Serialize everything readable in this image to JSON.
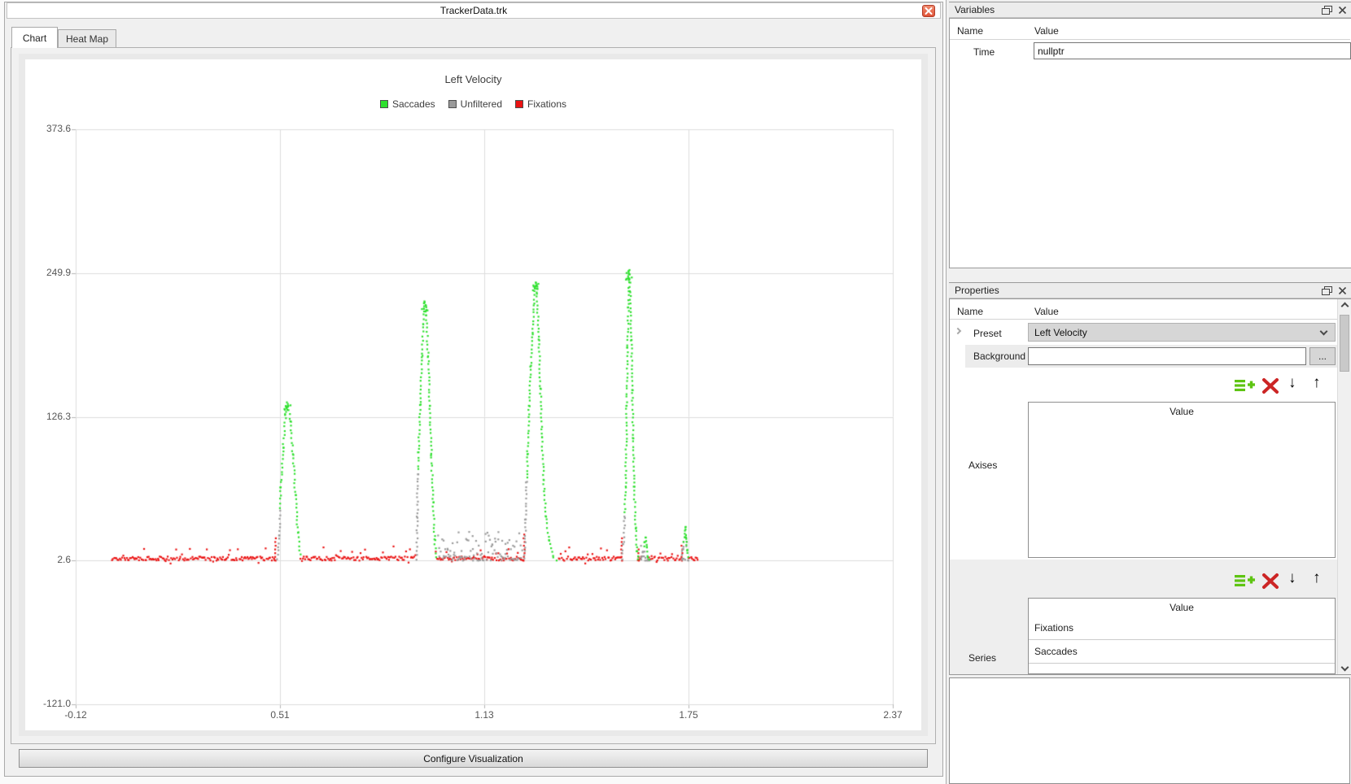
{
  "window": {
    "title": "TrackerData.trk"
  },
  "tabs": {
    "chart": "Chart",
    "heat_map": "Heat Map"
  },
  "main": {
    "configure_label": "Configure Visualization"
  },
  "chart_data": {
    "type": "scatter",
    "title": "Left Velocity",
    "xlabel": "",
    "ylabel": "",
    "xlim": [
      -0.12,
      2.37
    ],
    "ylim": [
      -121.0,
      373.6
    ],
    "x_ticks": [
      "-0.12",
      "0.51",
      "1.13",
      "1.75",
      "2.37"
    ],
    "y_ticks": [
      "373.6",
      "249.9",
      "126.3",
      "2.6",
      "-121.0"
    ],
    "grid": true,
    "legend_position": "top",
    "legend": [
      {
        "name": "Saccades",
        "color": "#2ee02e"
      },
      {
        "name": "Unfiltered",
        "color": "#9b9b9b"
      },
      {
        "name": "Fixations",
        "color": "#ea1212"
      }
    ],
    "series": [
      {
        "name": "Fixations",
        "type": "baseline",
        "color": "#ea1212",
        "baseline": 2.6,
        "segments": [
          [
            -0.01,
            0.489
          ],
          [
            0.565,
            0.918
          ],
          [
            0.978,
            1.245
          ],
          [
            1.352,
            1.542
          ],
          [
            1.594,
            1.606
          ],
          [
            1.628,
            1.727
          ],
          [
            1.748,
            1.778
          ]
        ],
        "stubs": [
          [
            0.4895,
            22
          ],
          [
            1.2465,
            26
          ],
          [
            1.5435,
            22
          ],
          [
            1.596,
            14
          ],
          [
            1.7275,
            16
          ]
        ]
      },
      {
        "name": "Unfiltered",
        "type": "cluster",
        "color": "#9b9b9b",
        "baseline": 2.6,
        "clusters": [
          [
            0.985,
            1.24,
            26
          ],
          [
            1.6,
            1.63,
            16
          ],
          [
            1.727,
            1.75,
            28
          ]
        ]
      },
      {
        "name": "Saccades",
        "type": "peaks",
        "color": "#2ee02e",
        "gray_color": "#9b9b9b",
        "peaks": [
          {
            "points": [
              [
                0.495,
                4
              ],
              [
                0.5,
                24
              ],
              [
                0.505,
                66
              ],
              [
                0.512,
                100
              ],
              [
                0.52,
                128
              ],
              [
                0.525,
                138
              ],
              [
                0.535,
                122
              ],
              [
                0.542,
                94
              ],
              [
                0.55,
                59
              ],
              [
                0.557,
                27
              ],
              [
                0.564,
                8
              ]
            ],
            "gray_rise_below": 46
          },
          {
            "points": [
              [
                0.919,
                4
              ],
              [
                0.921,
                40
              ],
              [
                0.923,
                77
              ],
              [
                0.925,
                95
              ],
              [
                0.93,
                136
              ],
              [
                0.935,
                178
              ],
              [
                0.94,
                206
              ],
              [
                0.944,
                225
              ],
              [
                0.949,
                213
              ],
              [
                0.954,
                178
              ],
              [
                0.959,
                136
              ],
              [
                0.964,
                94
              ],
              [
                0.969,
                52
              ],
              [
                0.974,
                20
              ],
              [
                0.979,
                6
              ]
            ],
            "gray_rise_below": 78
          },
          {
            "points": [
              [
                1.248,
                4
              ],
              [
                1.251,
                38
              ],
              [
                1.254,
                70
              ],
              [
                1.257,
                94
              ],
              [
                1.262,
                136
              ],
              [
                1.267,
                170
              ],
              [
                1.272,
                198
              ],
              [
                1.277,
                223
              ],
              [
                1.281,
                242
              ],
              [
                1.286,
                233
              ],
              [
                1.291,
                192
              ],
              [
                1.296,
                150
              ],
              [
                1.301,
                108
              ],
              [
                1.306,
                72
              ],
              [
                1.313,
                41
              ],
              [
                1.323,
                20
              ],
              [
                1.336,
                6
              ],
              [
                1.346,
                3
              ]
            ],
            "gray_rise_below": 71
          },
          {
            "points": [
              [
                1.545,
                4
              ],
              [
                1.549,
                16
              ],
              [
                1.553,
                40
              ],
              [
                1.556,
                66
              ],
              [
                1.559,
                136
              ],
              [
                1.562,
                185
              ],
              [
                1.564,
                220
              ],
              [
                1.566,
                252
              ],
              [
                1.57,
                234
              ],
              [
                1.573,
                192
              ],
              [
                1.576,
                150
              ],
              [
                1.579,
                108
              ],
              [
                1.582,
                66
              ],
              [
                1.586,
                31
              ],
              [
                1.591,
                10
              ],
              [
                1.594,
                4
              ]
            ],
            "gray_rise_below": 42
          },
          {
            "points": [
              [
                1.605,
                3
              ],
              [
                1.609,
                10
              ],
              [
                1.613,
                18
              ],
              [
                1.616,
                23
              ],
              [
                1.62,
                14
              ],
              [
                1.624,
                6
              ],
              [
                1.628,
                3
              ]
            ],
            "gray_rise_below": 12
          },
          {
            "points": [
              [
                1.727,
                4
              ],
              [
                1.731,
                12
              ],
              [
                1.735,
                22
              ],
              [
                1.738,
                32
              ],
              [
                1.741,
                22
              ],
              [
                1.744,
                12
              ],
              [
                1.748,
                5
              ]
            ],
            "gray_rise_below": 18
          }
        ]
      }
    ]
  },
  "variables_panel": {
    "title": "Variables",
    "col_name": "Name",
    "col_value": "Value",
    "rows": [
      {
        "name": "Time",
        "value": "nullptr"
      }
    ]
  },
  "properties_panel": {
    "title": "Properties",
    "col_name": "Name",
    "col_value": "Value",
    "preset_label": "Preset",
    "preset_value": "Left Velocity",
    "background_label": "Background",
    "background_value": "",
    "browse_label": "...",
    "axises_label": "Axises",
    "axises_header": "Value",
    "series_label": "Series",
    "series_header": "Value",
    "series_items": [
      "Fixations",
      "Saccades"
    ]
  }
}
